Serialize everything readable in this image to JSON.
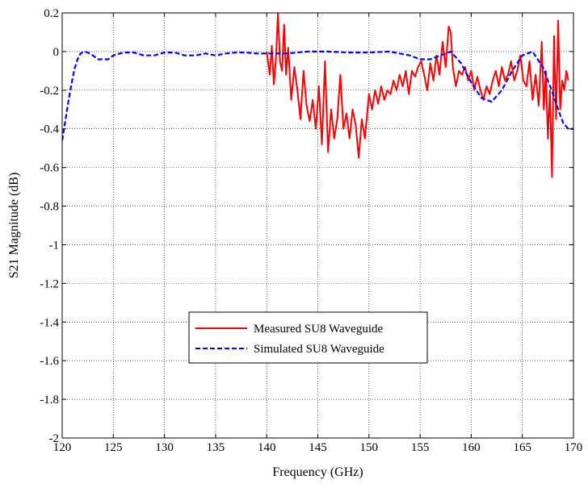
{
  "chart_data": {
    "type": "line",
    "title": "",
    "xlabel": "Frequency (GHz)",
    "ylabel": "S21 Magnitude (dB)",
    "xlim": [
      120,
      170
    ],
    "ylim": [
      -2,
      0.2
    ],
    "xticks": [
      120,
      125,
      130,
      135,
      140,
      145,
      150,
      155,
      160,
      165,
      170
    ],
    "yticks": [
      0.2,
      0,
      -0.2,
      -0.4,
      -0.6,
      -0.8,
      -1,
      -1.2,
      -1.4,
      -1.6,
      -1.8,
      -2
    ],
    "xtick_labels": [
      "120",
      "125",
      "130",
      "135",
      "140",
      "145",
      "150",
      "155",
      "160",
      "165",
      "170"
    ],
    "ytick_labels": [
      "0.2",
      "0",
      "-0.2",
      "-0.4",
      "-0.6",
      "-0.8",
      "-1",
      "-1.2",
      "-1.4",
      "-1.6",
      "-1.8",
      "-2"
    ],
    "grid": true,
    "legend_position": "lower-center",
    "series": [
      {
        "name": "Measured SU8 Waveguide",
        "color": "#ff0000",
        "dash": "solid",
        "x": [
          140.0,
          140.3,
          140.5,
          140.7,
          140.9,
          141.1,
          141.3,
          141.5,
          141.7,
          141.9,
          142.1,
          142.4,
          142.7,
          143.0,
          143.3,
          143.6,
          143.9,
          144.2,
          144.5,
          144.8,
          145.1,
          145.4,
          145.7,
          146.0,
          146.3,
          146.6,
          146.9,
          147.2,
          147.5,
          147.8,
          148.1,
          148.4,
          148.7,
          149.0,
          149.3,
          149.6,
          150.0,
          150.3,
          150.6,
          150.9,
          151.2,
          151.5,
          151.8,
          152.1,
          152.4,
          152.7,
          153.0,
          153.3,
          153.6,
          153.9,
          154.2,
          154.5,
          154.8,
          155.1,
          155.4,
          155.7,
          156.0,
          156.3,
          156.6,
          156.9,
          157.2,
          157.5,
          157.8,
          158.0,
          158.2,
          158.5,
          158.8,
          159.1,
          159.4,
          159.7,
          160.0,
          160.3,
          160.6,
          160.9,
          161.2,
          161.5,
          161.8,
          162.1,
          162.4,
          162.7,
          163.0,
          163.3,
          163.6,
          163.9,
          164.2,
          164.5,
          164.8,
          165.1,
          165.4,
          165.7,
          166.0,
          166.3,
          166.6,
          166.9,
          167.1,
          167.3,
          167.5,
          167.7,
          167.9,
          168.1,
          168.3,
          168.5,
          168.7,
          168.9,
          169.1,
          169.3,
          169.5
        ],
        "y": [
          0.0,
          -0.12,
          0.03,
          -0.17,
          -0.04,
          0.2,
          -0.05,
          -0.1,
          0.14,
          -0.12,
          0.02,
          -0.25,
          -0.08,
          -0.2,
          -0.35,
          -0.1,
          -0.28,
          -0.36,
          -0.25,
          -0.4,
          -0.18,
          -0.48,
          -0.05,
          -0.52,
          -0.3,
          -0.45,
          -0.35,
          -0.12,
          -0.4,
          -0.32,
          -0.45,
          -0.3,
          -0.38,
          -0.55,
          -0.35,
          -0.45,
          -0.22,
          -0.3,
          -0.2,
          -0.27,
          -0.18,
          -0.25,
          -0.2,
          -0.22,
          -0.15,
          -0.2,
          -0.12,
          -0.18,
          -0.1,
          -0.22,
          -0.1,
          -0.13,
          -0.08,
          -0.05,
          -0.12,
          -0.2,
          -0.06,
          -0.15,
          -0.02,
          -0.12,
          0.05,
          -0.08,
          0.13,
          0.1,
          -0.08,
          -0.18,
          -0.1,
          -0.12,
          -0.08,
          -0.15,
          -0.1,
          -0.2,
          -0.13,
          -0.2,
          -0.25,
          -0.18,
          -0.22,
          -0.15,
          -0.1,
          -0.18,
          -0.08,
          -0.15,
          -0.12,
          -0.05,
          -0.15,
          -0.1,
          -0.02,
          -0.15,
          -0.18,
          -0.05,
          -0.25,
          -0.12,
          -0.28,
          0.05,
          -0.3,
          -0.1,
          -0.45,
          -0.2,
          -0.65,
          0.08,
          -0.35,
          0.16,
          -0.3,
          -0.15,
          -0.2,
          -0.1,
          -0.15
        ]
      },
      {
        "name": "Simulated SU8 Waveguide",
        "color": "#0000ff",
        "dash": "dashed",
        "x": [
          120.0,
          120.3,
          120.6,
          120.9,
          121.2,
          121.5,
          121.8,
          122.1,
          122.5,
          123.0,
          123.5,
          124.0,
          124.5,
          125.0,
          126.0,
          127.0,
          128.0,
          129.0,
          130.0,
          131.0,
          132.0,
          133.0,
          134.0,
          135.0,
          136.0,
          137.0,
          138.0,
          139.0,
          140.0,
          142.0,
          144.0,
          146.0,
          148.0,
          150.0,
          152.0,
          154.0,
          155.0,
          156.0,
          157.0,
          158.0,
          159.0,
          160.0,
          161.0,
          162.0,
          163.0,
          164.0,
          165.0,
          166.0,
          167.0,
          168.0,
          168.5,
          169.0,
          169.5,
          170.0
        ],
        "y": [
          -0.46,
          -0.36,
          -0.26,
          -0.17,
          -0.09,
          -0.04,
          -0.01,
          0.0,
          -0.005,
          -0.02,
          -0.04,
          -0.04,
          -0.04,
          -0.02,
          -0.005,
          -0.005,
          -0.02,
          -0.02,
          -0.005,
          -0.005,
          -0.02,
          -0.02,
          -0.01,
          -0.02,
          -0.01,
          -0.005,
          -0.005,
          -0.01,
          -0.01,
          -0.01,
          0.0,
          0.0,
          -0.005,
          -0.005,
          0.0,
          -0.02,
          -0.04,
          -0.04,
          -0.02,
          0.0,
          -0.06,
          -0.16,
          -0.24,
          -0.26,
          -0.2,
          -0.1,
          -0.02,
          0.0,
          -0.08,
          -0.22,
          -0.3,
          -0.37,
          -0.4,
          -0.4
        ]
      }
    ]
  }
}
